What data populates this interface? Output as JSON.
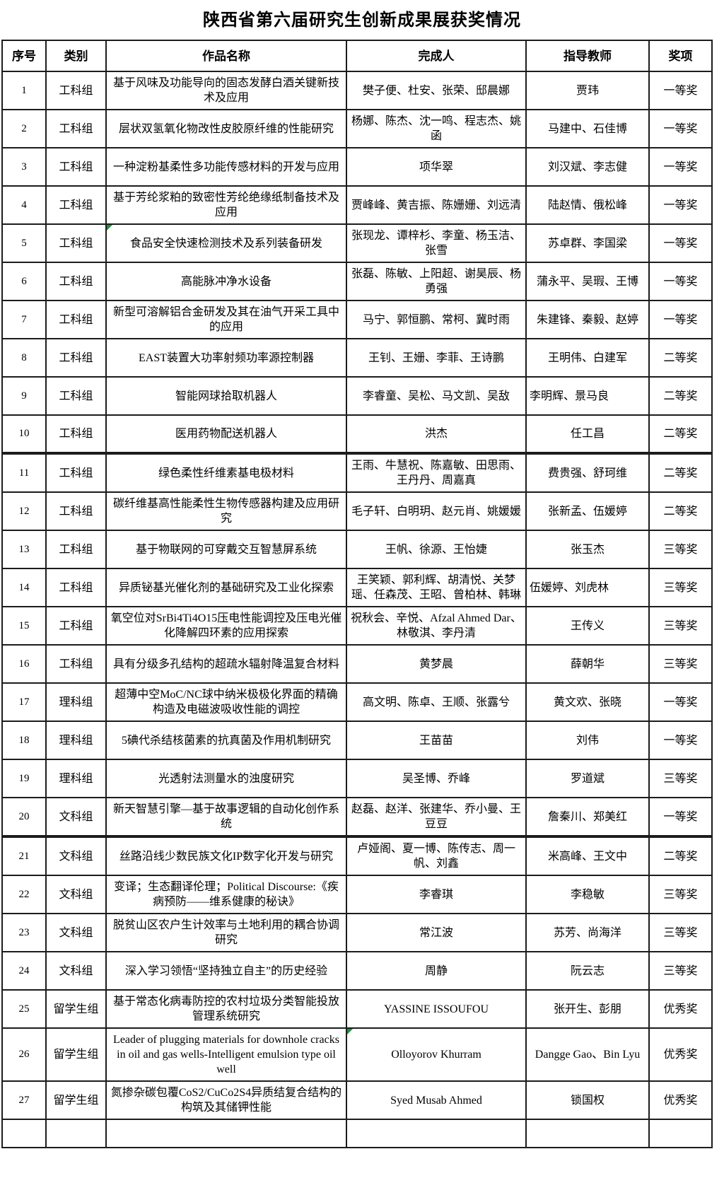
{
  "title": "陕西省第六届研究生创新成果展获奖情况",
  "colors": {
    "comment_marker": "#1e8f3e",
    "grid_border": "#1c1c1c"
  },
  "table": {
    "headers": [
      "序号",
      "类别",
      "作品名称",
      "完成人",
      "指导教师",
      "奖项"
    ],
    "rows": [
      {
        "no": "1",
        "category": "工科组",
        "work": "基于风味及功能导向的固态发酵白酒关键新技术及应用",
        "authors": "樊子便、杜安、张荣、邸晨娜",
        "advisors": "贾玮",
        "award": "一等奖"
      },
      {
        "no": "2",
        "category": "工科组",
        "work": "层状双氢氧化物改性皮胶原纤维的性能研究",
        "authors": "杨娜、陈杰、沈一鸣、程志杰、姚函",
        "advisors": "马建中、石佳博",
        "award": "一等奖"
      },
      {
        "no": "3",
        "category": "工科组",
        "work": "一种淀粉基柔性多功能传感材料的开发与应用",
        "authors": "项华翠",
        "advisors": "刘汉斌、李志健",
        "award": "一等奖"
      },
      {
        "no": "4",
        "category": "工科组",
        "work": "基于芳纶浆粕的致密性芳纶绝缘纸制备技术及应用",
        "authors": "贾峰峰、黄吉振、陈姗姗、刘远清",
        "advisors": "陆赵情、俄松峰",
        "award": "一等奖"
      },
      {
        "no": "5",
        "category": "工科组",
        "work": "食品安全快速检测技术及系列装备研发",
        "authors": "张现龙、谭梓杉、李童、杨玉洁、张雪",
        "advisors": "苏卓群、李国梁",
        "award": "一等奖",
        "marker": "work"
      },
      {
        "no": "6",
        "category": "工科组",
        "work": "高能脉冲净水设备",
        "authors": "张磊、陈敏、上阳超、谢昊辰、杨勇强",
        "advisors": "蒲永平、吴瑕、王博",
        "award": "一等奖"
      },
      {
        "no": "7",
        "category": "工科组",
        "work": "新型可溶解铝合金研发及其在油气开采工具中的应用",
        "authors": "马宁、郭恒鹏、常柯、冀时雨",
        "advisors": "朱建锋、秦毅、赵婷",
        "award": "一等奖"
      },
      {
        "no": "8",
        "category": "工科组",
        "work": "EAST装置大功率射频功率源控制器",
        "authors": "王钊、王姗、李菲、王诗鹏",
        "advisors": "王明伟、白建军",
        "award": "二等奖"
      },
      {
        "no": "9",
        "category": "工科组",
        "work": "智能网球拾取机器人",
        "authors": "李睿童、吴松、马文凯、吴敌",
        "advisors": "李明辉、景马良",
        "award": "二等奖",
        "align_left": [
          "advisors"
        ]
      },
      {
        "no": "10",
        "category": "工科组",
        "work": "医用药物配送机器人",
        "authors": "洪杰",
        "advisors": "任工昌",
        "award": "二等奖"
      },
      {
        "no": "11",
        "category": "工科组",
        "work": "绿色柔性纤维素基电极材料",
        "authors": "王雨、牛慧祝、陈嘉敏、田思雨、王丹丹、周嘉真",
        "advisors": "费贵强、舒珂维",
        "award": "二等奖",
        "thick_top": true
      },
      {
        "no": "12",
        "category": "工科组",
        "work": "碳纤维基高性能柔性生物传感器构建及应用研究",
        "authors": "毛子轩、白明玥、赵元肖、姚媛媛",
        "advisors": "张新孟、伍媛婷",
        "award": "二等奖"
      },
      {
        "no": "13",
        "category": "工科组",
        "work": "基于物联网的可穿戴交互智慧屏系统",
        "authors": "王帆、徐源、王怡婕",
        "advisors": "张玉杰",
        "award": "三等奖"
      },
      {
        "no": "14",
        "category": "工科组",
        "work": "异质铋基光催化剂的基础研究及工业化探索",
        "authors": "王笑颖、郭利辉、胡清悦、关梦瑶、任森茂、王昭、曾柏林、韩琳",
        "advisors": "伍媛婷、刘虎林",
        "award": "三等奖",
        "align_left": [
          "advisors"
        ]
      },
      {
        "no": "15",
        "category": "工科组",
        "work": "氧空位对SrBi4Ti4O15压电性能调控及压电光催化降解四环素的应用探索",
        "authors": "祝秋会、辛悦、Afzal Ahmed Dar、林敬淇、李丹清",
        "advisors": "王传义",
        "award": "三等奖"
      },
      {
        "no": "16",
        "category": "工科组",
        "work": "具有分级多孔结构的超疏水辐射降温复合材料",
        "authors": "黄梦晨",
        "advisors": "薛朝华",
        "award": "三等奖"
      },
      {
        "no": "17",
        "category": "理科组",
        "work": "超薄中空MoC/NC球中纳米极极化界面的精确构造及电磁波吸收性能的调控",
        "authors": "高文明、陈卓、王顺、张露兮",
        "advisors": "黄文欢、张晓",
        "award": "一等奖"
      },
      {
        "no": "18",
        "category": "理科组",
        "work": "5碘代杀结核菌素的抗真菌及作用机制研究",
        "authors": "王苗苗",
        "advisors": "刘伟",
        "award": "一等奖"
      },
      {
        "no": "19",
        "category": "理科组",
        "work": "光透射法测量水的浊度研究",
        "authors": "吴圣博、乔峰",
        "advisors": "罗道斌",
        "award": "三等奖"
      },
      {
        "no": "20",
        "category": "文科组",
        "work": "新天智慧引擎—基于故事逻辑的自动化创作系统",
        "authors": "赵磊、赵洋、张建华、乔小曼、王豆豆",
        "advisors": "詹秦川、郑美红",
        "award": "一等奖"
      },
      {
        "no": "21",
        "category": "文科组",
        "work": "丝路沿线少数民族文化IP数字化开发与研究",
        "authors": "卢娅阁、夏一博、陈传志、周一帆、刘鑫",
        "advisors": "米高峰、王文中",
        "award": "二等奖",
        "thick_top": true
      },
      {
        "no": "22",
        "category": "文科组",
        "work": "变译；生态翻译伦理；Political Discourse:《疾病预防——维系健康的秘诀》",
        "authors": "李睿琪",
        "advisors": "李稳敏",
        "award": "三等奖"
      },
      {
        "no": "23",
        "category": "文科组",
        "work": "脱贫山区农户生计效率与土地利用的耦合协调研究",
        "authors": "常江波",
        "advisors": "苏芳、尚海洋",
        "award": "三等奖"
      },
      {
        "no": "24",
        "category": "文科组",
        "work": "深入学习领悟“坚持独立自主”的历史经验",
        "authors": "周静",
        "advisors": "阮云志",
        "award": "三等奖"
      },
      {
        "no": "25",
        "category": "留学生组",
        "work": "基于常态化病毒防控的农村垃圾分类智能投放管理系统研究",
        "authors": "YASSINE ISSOUFOU",
        "advisors": "张开生、彭朋",
        "award": "优秀奖"
      },
      {
        "no": "26",
        "category": "留学生组",
        "work": "Leader of plugging materials for downhole cracks in oil and gas wells-Intelligent emulsion type oil well",
        "authors": "Olloyorov Khurram",
        "advisors": "Dangge Gao、Bin Lyu",
        "award": "优秀奖",
        "marker": "authors"
      },
      {
        "no": "27",
        "category": "留学生组",
        "work": "氮掺杂碳包覆CoS2/CuCo2S4异质结复合结构的构筑及其储钾性能",
        "authors": "Syed Musab Ahmed",
        "advisors": "锁国权",
        "award": "优秀奖"
      }
    ]
  }
}
